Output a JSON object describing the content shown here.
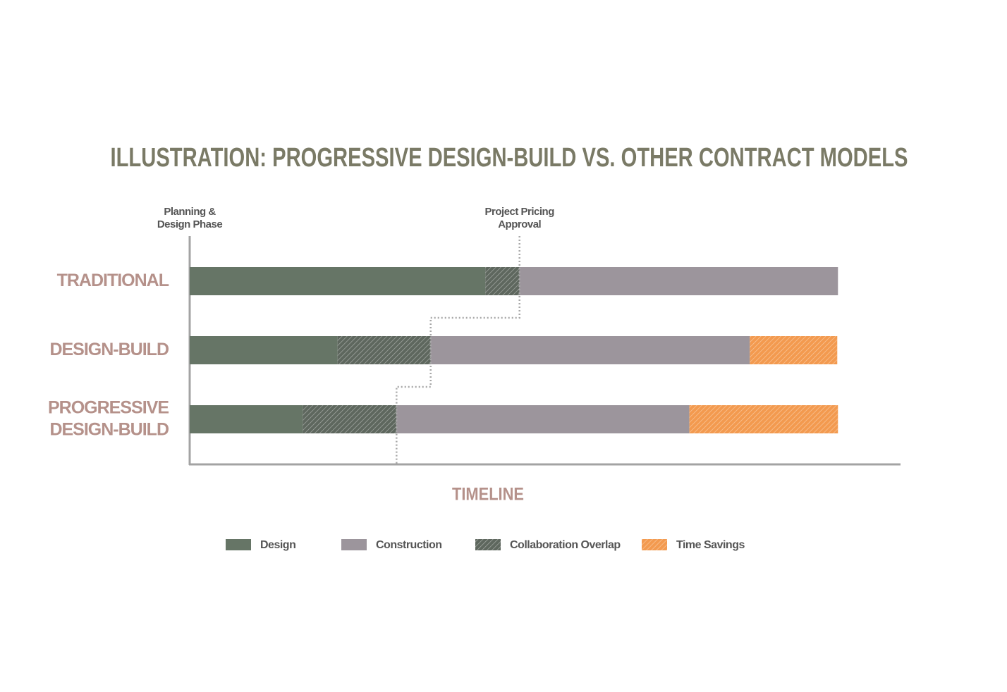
{
  "chart_data": {
    "type": "bar",
    "orientation": "horizontal",
    "stacked": true,
    "title": "ILLUSTRATION: PROGRESSIVE DESIGN-BUILD VS. OTHER CONTRACT MODELS",
    "x_label": "TIMELINE",
    "categories": [
      [
        "TRADITIONAL"
      ],
      [
        "DESIGN-BUILD"
      ],
      [
        "PROGRESSIVE",
        "DESIGN-BUILD"
      ]
    ],
    "xlim": [
      0,
      100
    ],
    "annotations": [
      {
        "text": [
          "Planning &",
          "Design Phase"
        ]
      },
      {
        "text": [
          "Project Pricing",
          "Approval"
        ]
      }
    ],
    "series": [
      {
        "name": "Design",
        "color": "#667566",
        "values": [
          41.6,
          20.8,
          15.9
        ]
      },
      {
        "name": "Construction",
        "color": "#9c959c",
        "values": [
          44.8,
          44.9,
          41.2
        ]
      },
      {
        "name": "Collaboration Overlap",
        "color": "#5e675e",
        "hatch": true,
        "values": [
          4.8,
          13.1,
          13.2
        ]
      },
      {
        "name": "Time Savings",
        "color": "#f39a4f",
        "hatch": true,
        "values": [
          null,
          12.3,
          20.9
        ]
      }
    ]
  }
}
